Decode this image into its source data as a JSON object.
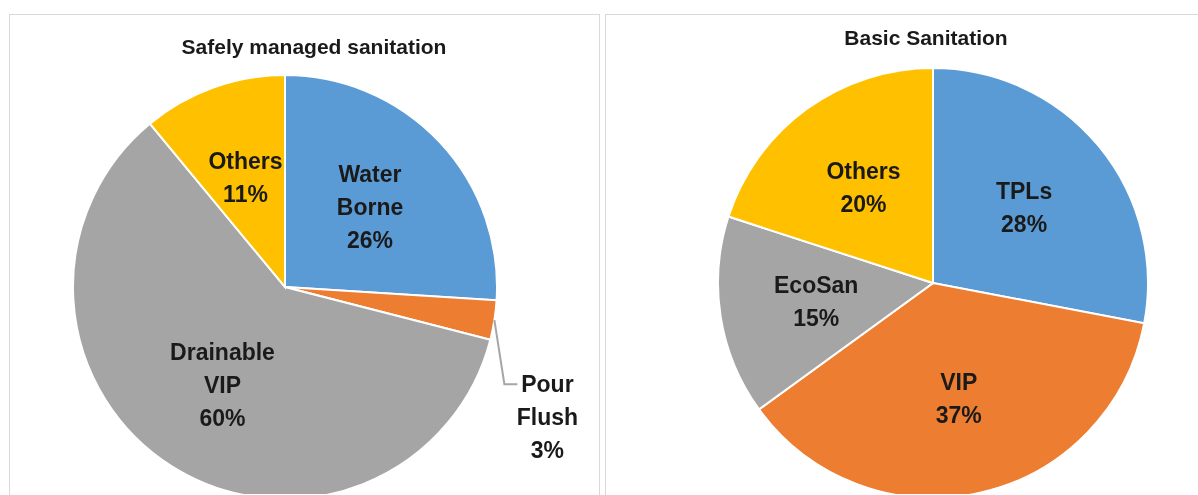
{
  "chart_data": [
    {
      "type": "pie",
      "title": "Safely managed sanitation",
      "categories": [
        "Water Borne",
        "Pour Flush",
        "Drainable VIP",
        "Others"
      ],
      "values": [
        26,
        3,
        60,
        11
      ],
      "value_labels": [
        "26%",
        "3%",
        "60%",
        "11%"
      ],
      "colors": [
        "#5b9bd5",
        "#ed7d31",
        "#a5a5a5",
        "#ffc000"
      ]
    },
    {
      "type": "pie",
      "title": "Basic Sanitation",
      "categories": [
        "TPLs",
        "VIP",
        "EcoSan",
        "Others"
      ],
      "values": [
        28,
        37,
        15,
        20
      ],
      "value_labels": [
        "28%",
        "37%",
        "15%",
        "20%"
      ],
      "colors": [
        "#5b9bd5",
        "#ed7d31",
        "#a5a5a5",
        "#ffc000"
      ]
    }
  ]
}
